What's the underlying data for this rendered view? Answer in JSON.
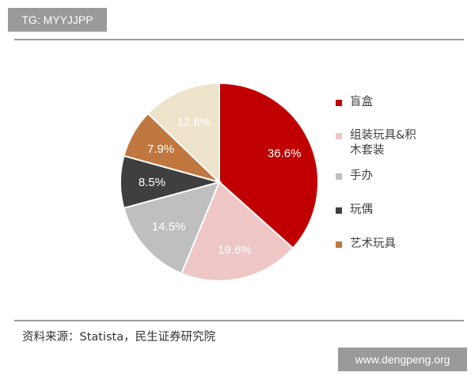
{
  "watermark_top": "TG: MYYJJPP",
  "watermark_bottom": "www.dengpeng.org",
  "source": "资料来源：Statista，民生证券研究院",
  "colors": {
    "blind_box": "#c00000",
    "building_blocks": "#eec6c6",
    "figures": "#bfbfbf",
    "dolls": "#3f3f3f",
    "art_toys": "#c0773f",
    "remaining": "#ede3cb"
  },
  "chart_data": {
    "type": "pie",
    "labels": [
      "盲盒",
      "组装玩具&积木套装",
      "手办",
      "玩偶",
      "艺术玩具",
      ""
    ],
    "values": [
      36.6,
      19.6,
      14.5,
      8.5,
      7.9,
      12.8
    ],
    "data_labels": [
      "36.6%",
      "19.6%",
      "14.5%",
      "8.5%",
      "7.9%",
      "12.8%"
    ],
    "legend_placement": "right",
    "legend": [
      {
        "label": "盲盒",
        "color": "#c00000"
      },
      {
        "label": "组装玩具&积木套装",
        "color": "#eec6c6"
      },
      {
        "label": "手办",
        "color": "#bfbfbf"
      },
      {
        "label": "玩偶",
        "color": "#3f3f3f"
      },
      {
        "label": "艺术玩具",
        "color": "#c0773f"
      }
    ]
  }
}
